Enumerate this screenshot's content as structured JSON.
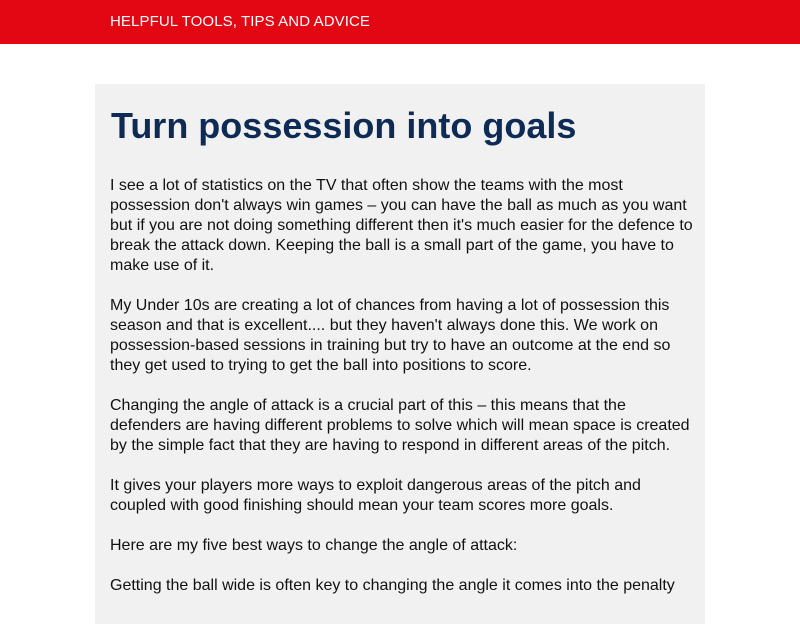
{
  "header": {
    "tagline": "HELPFUL TOOLS, TIPS AND ADVICE",
    "background_color": "#e30613"
  },
  "article": {
    "title": "Turn possession into goals",
    "title_color": "#0d2b54",
    "background_color": "#f2f1f2",
    "paragraphs": [
      "I see a lot of statistics on the TV that often show the teams with the most possession don't always win games – you can have the ball as much as you want but if you are not doing something different then it's much easier for the defence to break the attack down. Keeping the ball is a small part of the game, you have to make use of it.",
      "My Under 10s are creating a lot of chances from having a lot of possession this season and that is excellent.... but they haven't always done this. We work on possession-based sessions in training but try to have an outcome at the end so they get used to trying to get the ball into positions to score.",
      "Changing the angle of attack is a crucial part of this – this means that the defenders are having different problems to solve which will mean space is created by the simple fact that they are having to respond in different areas of the pitch.",
      "It gives your players more ways to exploit dangerous areas of the pitch and coupled with good finishing should mean your team scores more goals.",
      "Here are my five best ways to change the angle of attack:",
      "Getting the ball wide is often key to changing the angle it comes into the penalty"
    ]
  }
}
